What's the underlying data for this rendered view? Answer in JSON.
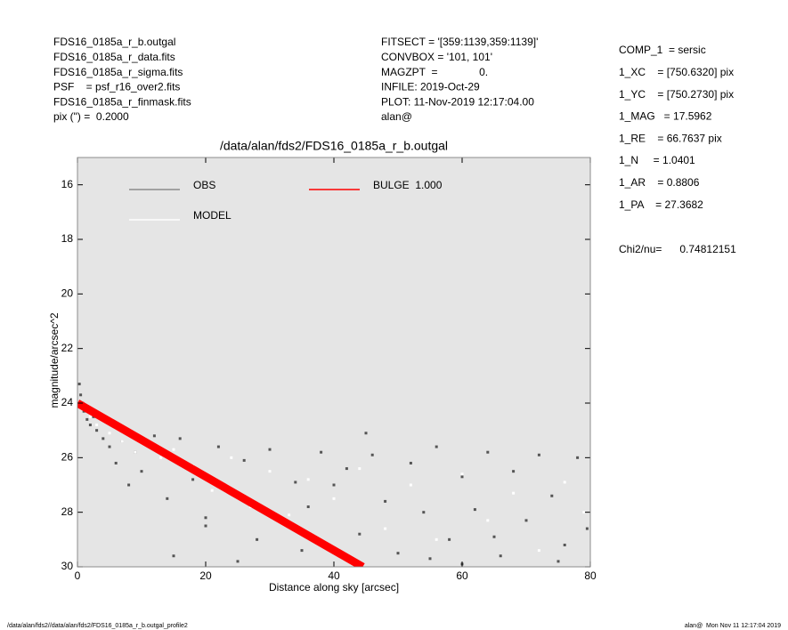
{
  "chart_data": {
    "type": "scatter",
    "title": "/data/alan/fds2/FDS16_0185a_r_b.outgal",
    "x_label": "Distance along sky [arcsec]",
    "y_label": "magnitude/arcsec^2",
    "info_left": [
      "FDS16_0185a_r_b.outgal",
      "FDS16_0185a_r_data.fits",
      "FDS16_0185a_r_sigma.fits",
      "PSF    = psf_r16_over2.fits",
      "FDS16_0185a_r_finmask.fits",
      "pix (\") =  0.2000"
    ],
    "info_middle": [
      "FITSECT = '[359:1139,359:1139]'",
      "CONVBOX = '101, 101'",
      "MAGZPT  =              0.",
      "INFILE: 2019-Oct-29",
      "PLOT: 11-Nov-2019 12:17:04.00",
      "alan@"
    ],
    "info_right": [
      "COMP_1  = sersic",
      "1_XC    = [750.6320] pix",
      "1_YC    = [750.2730] pix",
      "1_MAG   = 17.5962",
      "1_RE    = 66.7637 pix",
      "1_N     = 1.0401",
      "1_AR    = 0.8806",
      "1_PA    = 27.3682"
    ],
    "chi2": "Chi2/nu=      0.74812151",
    "footer_left": "/data/alan/fds2//data/alan/fds2/FDS16_0185a_r_b.outgal_profile2",
    "footer_right": "alan@  Mon Nov 11 12:17:04 2019",
    "xlim": [
      0,
      80
    ],
    "ylim": [
      30,
      15
    ],
    "xticks": [
      0,
      20,
      40,
      60,
      80
    ],
    "yticks": [
      16,
      18,
      20,
      22,
      24,
      26,
      28,
      30
    ],
    "background": "#e5e5e5",
    "series": [
      {
        "name": "OBS",
        "color": "#555555",
        "legend_color": "#8c8c8c",
        "style": "points",
        "x": [
          0.3,
          0.5,
          0.8,
          1,
          1.5,
          2,
          2.5,
          3,
          4,
          5,
          6,
          7,
          8,
          9,
          10,
          12,
          14,
          16,
          18,
          20,
          22,
          24,
          26,
          28,
          30,
          32,
          34,
          36,
          38,
          40,
          42,
          44,
          46,
          48,
          50,
          52,
          54,
          56,
          58,
          60,
          62,
          64,
          66,
          68,
          70,
          72,
          74,
          76,
          78,
          79.5,
          15,
          25,
          35,
          45,
          55,
          65,
          75,
          20,
          40,
          60
        ],
        "values": [
          23.3,
          23.7,
          24.0,
          24.3,
          24.6,
          24.8,
          24.5,
          25.0,
          25.3,
          25.6,
          26.2,
          25.4,
          27.0,
          25.8,
          26.5,
          25.2,
          27.5,
          25.3,
          26.8,
          28.2,
          25.6,
          27.3,
          26.1,
          29.0,
          25.7,
          28.4,
          26.9,
          27.8,
          25.8,
          29.3,
          26.4,
          28.8,
          25.9,
          27.6,
          29.5,
          26.2,
          28.0,
          25.6,
          29.0,
          26.7,
          27.9,
          25.8,
          29.6,
          26.5,
          28.3,
          25.9,
          27.4,
          29.2,
          26.0,
          28.6,
          29.6,
          29.8,
          29.4,
          25.1,
          29.7,
          28.9,
          29.8,
          28.5,
          27.0,
          29.9
        ]
      },
      {
        "name": "MODEL",
        "color": "#ffffff",
        "legend_color": "#ffffff",
        "style": "points",
        "x": [
          1,
          2,
          3,
          5,
          7,
          9,
          11,
          13,
          15,
          18,
          21,
          24,
          27,
          30,
          33,
          36,
          40,
          44,
          48,
          52,
          56,
          60,
          64,
          68,
          72,
          76,
          79
        ],
        "values": [
          24.2,
          24.5,
          24.8,
          25.1,
          25.4,
          25.8,
          25.5,
          26.0,
          25.7,
          26.3,
          27.2,
          26.0,
          27.8,
          26.5,
          28.1,
          26.8,
          27.5,
          26.4,
          28.6,
          27.0,
          29.0,
          26.6,
          28.3,
          27.3,
          29.4,
          26.9,
          28.0
        ]
      },
      {
        "name": "BULGE  1.000",
        "color": "#ff0000",
        "legend_color": "#ff0000",
        "style": "band",
        "x": [
          0,
          44.5
        ],
        "values": [
          24.0,
          30.0
        ]
      }
    ]
  }
}
